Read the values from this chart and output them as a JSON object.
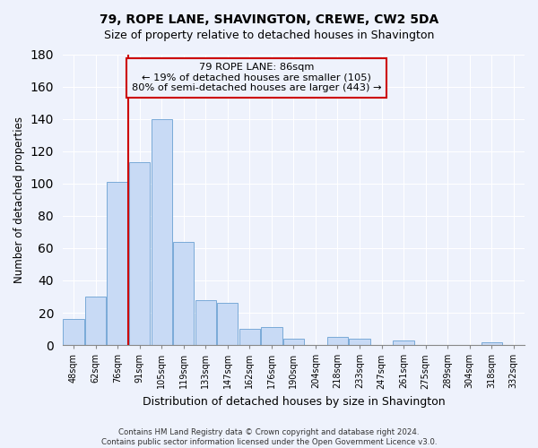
{
  "title": "79, ROPE LANE, SHAVINGTON, CREWE, CW2 5DA",
  "subtitle": "Size of property relative to detached houses in Shavington",
  "xlabel": "Distribution of detached houses by size in Shavington",
  "ylabel": "Number of detached properties",
  "bar_labels": [
    "48sqm",
    "62sqm",
    "76sqm",
    "91sqm",
    "105sqm",
    "119sqm",
    "133sqm",
    "147sqm",
    "162sqm",
    "176sqm",
    "190sqm",
    "204sqm",
    "218sqm",
    "233sqm",
    "247sqm",
    "261sqm",
    "275sqm",
    "289sqm",
    "304sqm",
    "318sqm",
    "332sqm"
  ],
  "bar_values": [
    16,
    30,
    101,
    113,
    140,
    64,
    28,
    26,
    10,
    11,
    4,
    0,
    5,
    4,
    0,
    3,
    0,
    0,
    0,
    2,
    0
  ],
  "bar_color": "#c8daf5",
  "bar_edge_color": "#7aaad8",
  "vline_color": "#cc0000",
  "ylim": [
    0,
    180
  ],
  "yticks": [
    0,
    20,
    40,
    60,
    80,
    100,
    120,
    140,
    160,
    180
  ],
  "annotation_title": "79 ROPE LANE: 86sqm",
  "annotation_line1": "← 19% of detached houses are smaller (105)",
  "annotation_line2": "80% of semi-detached houses are larger (443) →",
  "footer_line1": "Contains HM Land Registry data © Crown copyright and database right 2024.",
  "footer_line2": "Contains public sector information licensed under the Open Government Licence v3.0.",
  "background_color": "#eef2fc",
  "grid_color": "#ffffff",
  "title_fontsize": 10,
  "subtitle_fontsize": 9
}
